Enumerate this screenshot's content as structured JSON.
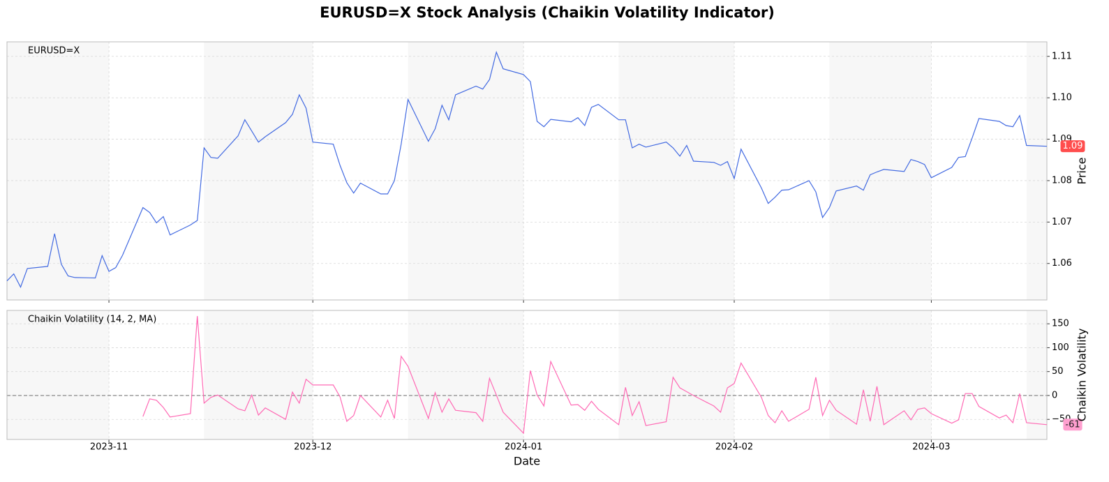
{
  "chart_data": [
    {
      "type": "line",
      "title": "EURUSD=X Stock Analysis (Chaikin Volatility Indicator)",
      "ylabel": "Price",
      "x": [
        "2023-10-17",
        "2023-10-18",
        "2023-10-19",
        "2023-10-20",
        "2023-10-23",
        "2023-10-24",
        "2023-10-25",
        "2023-10-26",
        "2023-10-27",
        "2023-10-30",
        "2023-10-31",
        "2023-11-01",
        "2023-11-02",
        "2023-11-03",
        "2023-11-06",
        "2023-11-07",
        "2023-11-08",
        "2023-11-09",
        "2023-11-10",
        "2023-11-13",
        "2023-11-14",
        "2023-11-15",
        "2023-11-16",
        "2023-11-17",
        "2023-11-20",
        "2023-11-21",
        "2023-11-22",
        "2023-11-23",
        "2023-11-24",
        "2023-11-27",
        "2023-11-28",
        "2023-11-29",
        "2023-11-30",
        "2023-12-01",
        "2023-12-04",
        "2023-12-05",
        "2023-12-06",
        "2023-12-07",
        "2023-12-08",
        "2023-12-11",
        "2023-12-12",
        "2023-12-13",
        "2023-12-14",
        "2023-12-15",
        "2023-12-18",
        "2023-12-19",
        "2023-12-20",
        "2023-12-21",
        "2023-12-22",
        "2023-12-25",
        "2023-12-26",
        "2023-12-27",
        "2023-12-28",
        "2023-12-29",
        "2024-01-01",
        "2024-01-02",
        "2024-01-03",
        "2024-01-04",
        "2024-01-05",
        "2024-01-08",
        "2024-01-09",
        "2024-01-10",
        "2024-01-11",
        "2024-01-12",
        "2024-01-15",
        "2024-01-16",
        "2024-01-17",
        "2024-01-18",
        "2024-01-19",
        "2024-01-22",
        "2024-01-23",
        "2024-01-24",
        "2024-01-25",
        "2024-01-26",
        "2024-01-29",
        "2024-01-30",
        "2024-01-31",
        "2024-02-01",
        "2024-02-02",
        "2024-02-05",
        "2024-02-06",
        "2024-02-07",
        "2024-02-08",
        "2024-02-09",
        "2024-02-12",
        "2024-02-13",
        "2024-02-14",
        "2024-02-15",
        "2024-02-16",
        "2024-02-19",
        "2024-02-20",
        "2024-02-21",
        "2024-02-22",
        "2024-02-23",
        "2024-02-26",
        "2024-02-27",
        "2024-02-28",
        "2024-02-29",
        "2024-03-01",
        "2024-03-04",
        "2024-03-05",
        "2024-03-06",
        "2024-03-07",
        "2024-03-08",
        "2024-03-11",
        "2024-03-12",
        "2024-03-13",
        "2024-03-14",
        "2024-03-15",
        "2024-03-18"
      ],
      "series": [
        {
          "name": "EURUSD=X",
          "color": "#4169e1",
          "last_label": "1.09",
          "label_color": "#ff4d4d",
          "values": [
            1.0558,
            1.0575,
            1.0543,
            1.0588,
            1.0593,
            1.0672,
            1.0598,
            1.057,
            1.0566,
            1.0565,
            1.0619,
            1.0581,
            1.059,
            1.062,
            1.0735,
            1.0723,
            1.0698,
            1.0713,
            1.0669,
            1.0693,
            1.0704,
            1.0879,
            1.0856,
            1.0854,
            1.0908,
            1.0947,
            1.092,
            1.0893,
            1.0906,
            1.094,
            1.096,
            1.1007,
            1.0975,
            1.0893,
            1.0888,
            1.0837,
            1.0795,
            1.077,
            1.0794,
            1.0768,
            1.0768,
            1.08,
            1.0888,
            1.0996,
            1.0895,
            1.0925,
            1.0982,
            1.0947,
            1.1007,
            1.1028,
            1.1021,
            1.1044,
            1.111,
            1.107,
            1.1056,
            1.1039,
            1.0943,
            1.093,
            1.0948,
            1.0942,
            1.0952,
            1.0933,
            1.0977,
            1.0984,
            1.0947,
            1.0947,
            1.0879,
            1.0888,
            1.0881,
            1.0893,
            1.0879,
            1.0859,
            1.0885,
            1.0847,
            1.0844,
            1.0837,
            1.0846,
            1.0805,
            1.0876,
            1.0782,
            1.0745,
            1.076,
            1.0777,
            1.0778,
            1.08,
            1.0773,
            1.0711,
            1.0735,
            1.0775,
            1.0787,
            1.0777,
            1.0814,
            1.0821,
            1.0827,
            1.0822,
            1.0851,
            1.0846,
            1.0839,
            1.0807,
            1.0832,
            1.0856,
            1.0858,
            1.0903,
            1.095,
            1.0943,
            1.0933,
            1.093,
            1.0957,
            1.0885,
            1.0883
          ]
        }
      ],
      "xlim": [
        "2023-10-17",
        "2024-03-18"
      ],
      "xticks": [
        "2023-11-01",
        "2023-12-01",
        "2024-01-01",
        "2024-02-01",
        "2024-03-01"
      ],
      "ylim": [
        1.0512,
        1.1135
      ],
      "yticks": [
        1.06,
        1.07,
        1.08,
        1.09,
        {
          "value": 1.1,
          "label": "1.10"
        },
        1.11
      ],
      "grid": true
    },
    {
      "type": "line",
      "ylabel": "Chaikin Volatility",
      "xlabel": "Date",
      "hline": 0,
      "x": [
        "2023-10-17",
        "2023-10-18",
        "2023-10-19",
        "2023-10-20",
        "2023-10-23",
        "2023-10-24",
        "2023-10-25",
        "2023-10-26",
        "2023-10-27",
        "2023-10-30",
        "2023-10-31",
        "2023-11-01",
        "2023-11-02",
        "2023-11-03",
        "2023-11-06",
        "2023-11-07",
        "2023-11-08",
        "2023-11-09",
        "2023-11-10",
        "2023-11-13",
        "2023-11-14",
        "2023-11-15",
        "2023-11-16",
        "2023-11-17",
        "2023-11-20",
        "2023-11-21",
        "2023-11-22",
        "2023-11-23",
        "2023-11-24",
        "2023-11-27",
        "2023-11-28",
        "2023-11-29",
        "2023-11-30",
        "2023-12-01",
        "2023-12-04",
        "2023-12-05",
        "2023-12-06",
        "2023-12-07",
        "2023-12-08",
        "2023-12-11",
        "2023-12-12",
        "2023-12-13",
        "2023-12-14",
        "2023-12-15",
        "2023-12-18",
        "2023-12-19",
        "2023-12-20",
        "2023-12-21",
        "2023-12-22",
        "2023-12-25",
        "2023-12-26",
        "2023-12-27",
        "2023-12-28",
        "2023-12-29",
        "2024-01-01",
        "2024-01-02",
        "2024-01-03",
        "2024-01-04",
        "2024-01-05",
        "2024-01-08",
        "2024-01-09",
        "2024-01-10",
        "2024-01-11",
        "2024-01-12",
        "2024-01-15",
        "2024-01-16",
        "2024-01-17",
        "2024-01-18",
        "2024-01-19",
        "2024-01-22",
        "2024-01-23",
        "2024-01-24",
        "2024-01-25",
        "2024-01-26",
        "2024-01-29",
        "2024-01-30",
        "2024-01-31",
        "2024-02-01",
        "2024-02-02",
        "2024-02-05",
        "2024-02-06",
        "2024-02-07",
        "2024-02-08",
        "2024-02-09",
        "2024-02-12",
        "2024-02-13",
        "2024-02-14",
        "2024-02-15",
        "2024-02-16",
        "2024-02-19",
        "2024-02-20",
        "2024-02-21",
        "2024-02-22",
        "2024-02-23",
        "2024-02-26",
        "2024-02-27",
        "2024-02-28",
        "2024-02-29",
        "2024-03-01",
        "2024-03-04",
        "2024-03-05",
        "2024-03-06",
        "2024-03-07",
        "2024-03-08",
        "2024-03-11",
        "2024-03-12",
        "2024-03-13",
        "2024-03-14",
        "2024-03-15",
        "2024-03-18"
      ],
      "series": [
        {
          "name": "Chaikin Volatility (14, 2, MA)",
          "color": "#ff69b4",
          "label_color": "#ff9fcf",
          "values": [
            null,
            null,
            null,
            null,
            null,
            null,
            null,
            null,
            null,
            null,
            null,
            null,
            null,
            null,
            -44,
            -7,
            -10,
            -25,
            -45,
            -38,
            166,
            -16,
            -4,
            1,
            -28,
            -32,
            1,
            -41,
            -26,
            -50,
            7,
            -16,
            34,
            22,
            22,
            -3,
            -54,
            -42,
            0,
            -45,
            -10,
            -48,
            82,
            61,
            -48,
            6,
            -35,
            -7,
            -31,
            -36,
            -54,
            36,
            1,
            -35,
            -79,
            52,
            1,
            -22,
            71,
            -20,
            -19,
            -31,
            -12,
            -29,
            -61,
            17,
            -42,
            -13,
            -63,
            -55,
            38,
            16,
            8,
            0,
            -22,
            -35,
            16,
            25,
            68,
            -4,
            -42,
            -57,
            -32,
            -54,
            -29,
            38,
            -42,
            -10,
            -31,
            -60,
            12,
            -54,
            19,
            -61,
            -32,
            -51,
            -29,
            -26,
            -38,
            -58,
            -51,
            4,
            4,
            -23,
            -47,
            -41,
            -57,
            4,
            -57,
            -61
          ]
        }
      ],
      "xlim": [
        "2023-10-17",
        "2024-03-18"
      ],
      "xticks": [
        {
          "value": "2023-11-01",
          "label": "2023-11"
        },
        {
          "value": "2023-12-01",
          "label": "2023-12"
        },
        {
          "value": "2024-01-01",
          "label": "2024-01"
        },
        {
          "value": "2024-02-01",
          "label": "2024-02"
        },
        {
          "value": "2024-03-01",
          "label": "2024-03"
        }
      ],
      "ylim": [
        -92,
        178
      ],
      "yticks": [
        {
          "value": -50,
          "label": "−50"
        },
        0,
        50,
        100,
        150
      ],
      "grid": true
    }
  ]
}
